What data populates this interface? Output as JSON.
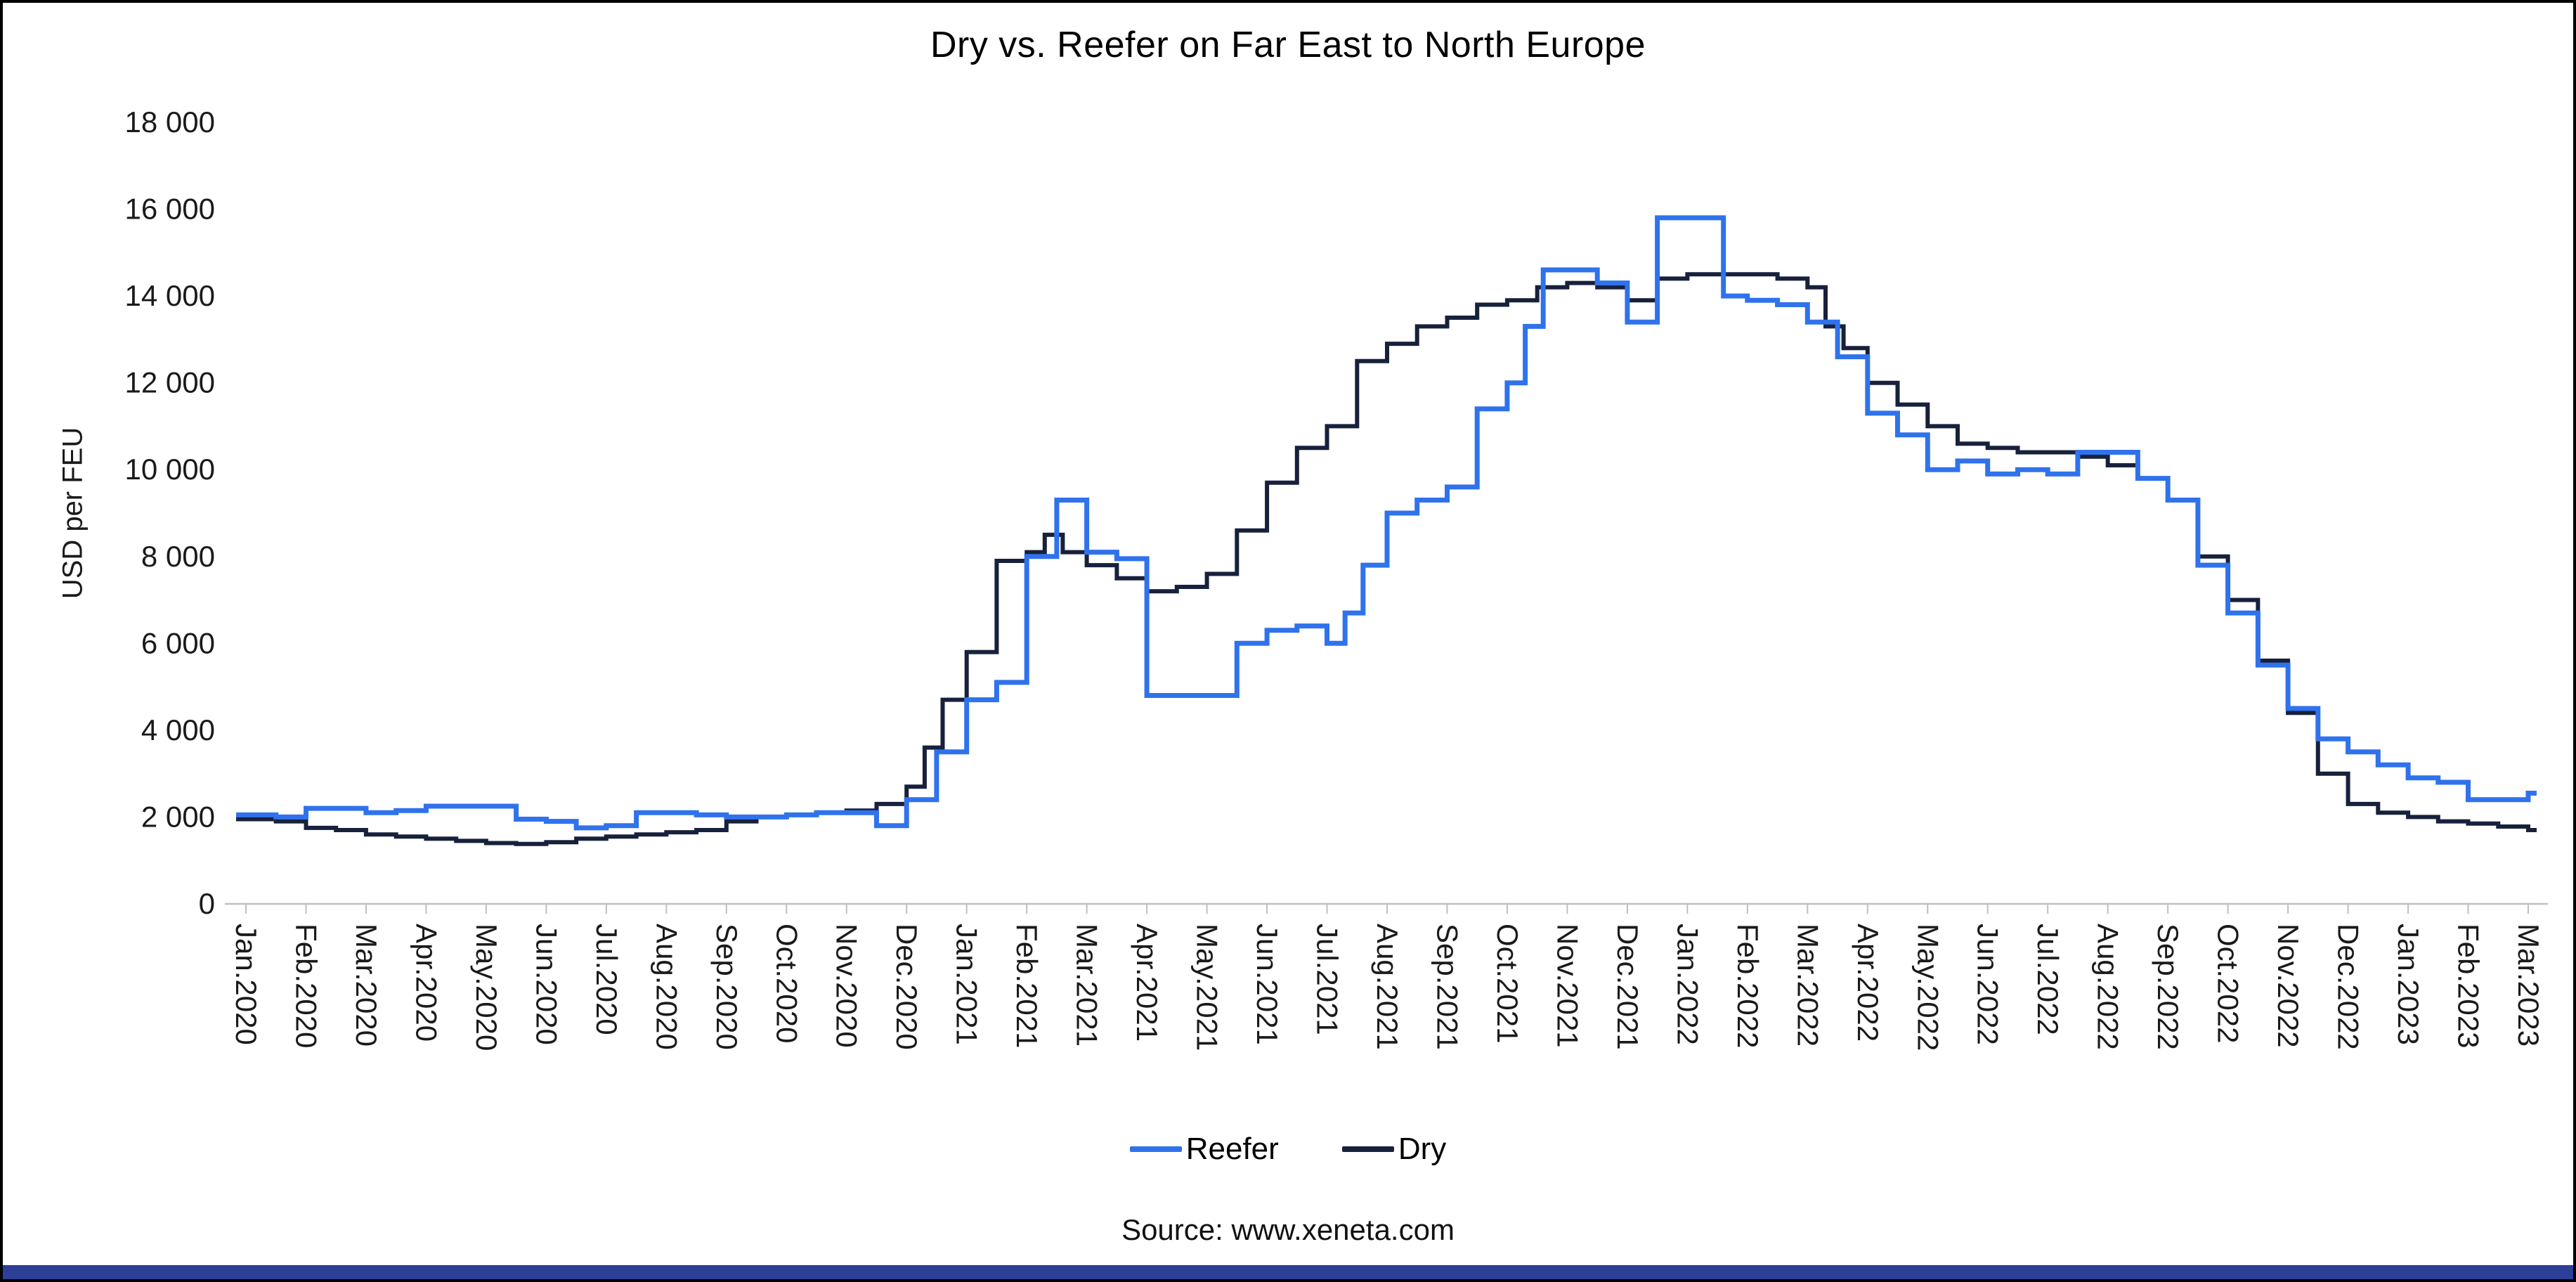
{
  "page": {
    "source": "Source: www.xeneta.com",
    "accent_bar_color": "#2B3F96",
    "axis_color": "#BFBFBF",
    "text_color": "#1a1a1a"
  },
  "chart_data": {
    "type": "line",
    "title": "Dry vs. Reefer on Far East to North Europe",
    "ylabel": "USD per FEU",
    "xlabel": "",
    "ylim": [
      0,
      18000
    ],
    "ytick_step": 2000,
    "ytick_labels": [
      "0",
      "2 000",
      "4 000",
      "6 000",
      "8 000",
      "10 000",
      "12 000",
      "14 000",
      "16 000",
      "18 000"
    ],
    "categories": [
      "Jan.2020",
      "Feb.2020",
      "Mar.2020",
      "Apr.2020",
      "May.2020",
      "Jun.2020",
      "Jul.2020",
      "Aug.2020",
      "Sep.2020",
      "Oct.2020",
      "Nov.2020",
      "Dec.2020",
      "Jan.2021",
      "Feb.2021",
      "Mar.2021",
      "Apr.2021",
      "May.2021",
      "Jun.2021",
      "Jul.2021",
      "Aug.2021",
      "Sep.2021",
      "Oct.2021",
      "Nov.2021",
      "Dec.2021",
      "Jan.2022",
      "Feb.2022",
      "Mar.2022",
      "Apr.2022",
      "May.2022",
      "Jun.2022",
      "Jul.2022",
      "Aug.2022",
      "Sep.2022",
      "Oct.2022",
      "Nov.2022",
      "Dec.2022",
      "Jan.2023",
      "Feb.2023",
      "Mar.2023"
    ],
    "x_unit": "months since Jan 2020 (fractional = intra-month weekly steps)",
    "step_interpolation": true,
    "grid": false,
    "legend_position": "bottom",
    "series": [
      {
        "name": "Reefer",
        "color": "#2F72EC",
        "points": [
          [
            0,
            2050
          ],
          [
            0.5,
            2000
          ],
          [
            1,
            2200
          ],
          [
            1.5,
            2200
          ],
          [
            2,
            2100
          ],
          [
            2.5,
            2150
          ],
          [
            3,
            2250
          ],
          [
            3.5,
            2250
          ],
          [
            4,
            2250
          ],
          [
            4.5,
            1950
          ],
          [
            5,
            1900
          ],
          [
            5.5,
            1750
          ],
          [
            6,
            1800
          ],
          [
            6.5,
            2100
          ],
          [
            7,
            2100
          ],
          [
            7.5,
            2050
          ],
          [
            8,
            2000
          ],
          [
            8.5,
            2000
          ],
          [
            9,
            2050
          ],
          [
            9.5,
            2100
          ],
          [
            10,
            2100
          ],
          [
            10.5,
            1800
          ],
          [
            11,
            2400
          ],
          [
            11.5,
            3500
          ],
          [
            12,
            4700
          ],
          [
            12.5,
            5100
          ],
          [
            13,
            8000
          ],
          [
            13.5,
            9300
          ],
          [
            14,
            8100
          ],
          [
            14.5,
            7950
          ],
          [
            15,
            4800
          ],
          [
            16,
            4800
          ],
          [
            16.5,
            6000
          ],
          [
            17,
            6300
          ],
          [
            17.5,
            6400
          ],
          [
            18,
            6000
          ],
          [
            18.3,
            6700
          ],
          [
            18.6,
            7800
          ],
          [
            19,
            9000
          ],
          [
            19.5,
            9300
          ],
          [
            20,
            9600
          ],
          [
            20.5,
            11400
          ],
          [
            21,
            12000
          ],
          [
            21.3,
            13300
          ],
          [
            21.6,
            14600
          ],
          [
            22,
            14600
          ],
          [
            22.5,
            14300
          ],
          [
            23,
            13400
          ],
          [
            23.5,
            15800
          ],
          [
            24.5,
            15800
          ],
          [
            24.6,
            14000
          ],
          [
            25,
            13900
          ],
          [
            25.5,
            13800
          ],
          [
            26,
            13400
          ],
          [
            26.5,
            12600
          ],
          [
            27,
            11300
          ],
          [
            27.5,
            10800
          ],
          [
            28,
            10000
          ],
          [
            28.5,
            10200
          ],
          [
            29,
            9900
          ],
          [
            29.5,
            10000
          ],
          [
            30,
            9900
          ],
          [
            30.5,
            10400
          ],
          [
            31,
            10400
          ],
          [
            31.5,
            9800
          ],
          [
            32,
            9300
          ],
          [
            32.5,
            7800
          ],
          [
            33,
            6700
          ],
          [
            33.5,
            5500
          ],
          [
            34,
            4500
          ],
          [
            34.5,
            3800
          ],
          [
            35,
            3500
          ],
          [
            35.5,
            3200
          ],
          [
            36,
            2900
          ],
          [
            36.5,
            2800
          ],
          [
            37,
            2400
          ],
          [
            37.5,
            2400
          ],
          [
            38,
            2550
          ]
        ]
      },
      {
        "name": "Dry",
        "color": "#17213C",
        "points": [
          [
            0,
            1950
          ],
          [
            0.5,
            1900
          ],
          [
            1,
            1750
          ],
          [
            1.5,
            1700
          ],
          [
            2,
            1600
          ],
          [
            2.5,
            1550
          ],
          [
            3,
            1500
          ],
          [
            3.5,
            1450
          ],
          [
            4,
            1400
          ],
          [
            4.5,
            1380
          ],
          [
            5,
            1420
          ],
          [
            5.5,
            1500
          ],
          [
            6,
            1550
          ],
          [
            6.5,
            1600
          ],
          [
            7,
            1650
          ],
          [
            7.5,
            1700
          ],
          [
            8,
            1900
          ],
          [
            8.5,
            2000
          ],
          [
            9,
            2050
          ],
          [
            9.5,
            2100
          ],
          [
            10,
            2150
          ],
          [
            10.5,
            2300
          ],
          [
            11,
            2700
          ],
          [
            11.3,
            3600
          ],
          [
            11.6,
            4700
          ],
          [
            12,
            5800
          ],
          [
            12.5,
            7900
          ],
          [
            13,
            8100
          ],
          [
            13.3,
            8500
          ],
          [
            13.6,
            8100
          ],
          [
            14,
            7800
          ],
          [
            14.5,
            7500
          ],
          [
            15,
            7200
          ],
          [
            15.5,
            7300
          ],
          [
            16,
            7600
          ],
          [
            16.5,
            8600
          ],
          [
            17,
            9700
          ],
          [
            17.5,
            10500
          ],
          [
            18,
            11000
          ],
          [
            18.5,
            12500
          ],
          [
            19,
            12900
          ],
          [
            19.5,
            13300
          ],
          [
            20,
            13500
          ],
          [
            20.5,
            13800
          ],
          [
            21,
            13900
          ],
          [
            21.5,
            14200
          ],
          [
            22,
            14300
          ],
          [
            22.5,
            14200
          ],
          [
            23,
            13900
          ],
          [
            23.5,
            14400
          ],
          [
            24,
            14500
          ],
          [
            25,
            14500
          ],
          [
            25.5,
            14400
          ],
          [
            26,
            14200
          ],
          [
            26.3,
            13300
          ],
          [
            26.6,
            12800
          ],
          [
            27,
            12000
          ],
          [
            27.5,
            11500
          ],
          [
            28,
            11000
          ],
          [
            28.5,
            10600
          ],
          [
            29,
            10500
          ],
          [
            29.5,
            10400
          ],
          [
            30,
            10400
          ],
          [
            30.5,
            10300
          ],
          [
            31,
            10100
          ],
          [
            31.5,
            9800
          ],
          [
            32,
            9300
          ],
          [
            32.5,
            8000
          ],
          [
            33,
            7000
          ],
          [
            33.5,
            5600
          ],
          [
            34,
            4400
          ],
          [
            34.5,
            3000
          ],
          [
            35,
            2300
          ],
          [
            35.5,
            2100
          ],
          [
            36,
            2000
          ],
          [
            36.5,
            1900
          ],
          [
            37,
            1850
          ],
          [
            37.5,
            1780
          ],
          [
            38,
            1700
          ]
        ]
      }
    ],
    "source": "Source: www.xeneta.com"
  }
}
